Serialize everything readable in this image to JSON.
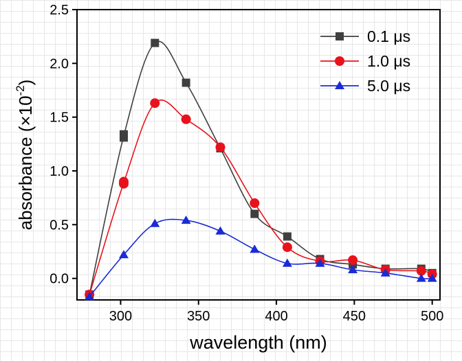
{
  "chart_data": {
    "type": "line",
    "xlabel": "wavelength (nm)",
    "ylabel_main": "absorbance (×10",
    "ylabel_sup": "-2",
    "ylabel_close": ")",
    "xlim": [
      272,
      505
    ],
    "ylim": [
      -0.2,
      2.5
    ],
    "xticks": [
      300,
      350,
      400,
      450,
      500
    ],
    "xtick_labels": [
      "300",
      "350",
      "400",
      "450",
      "500"
    ],
    "yticks": [
      0.0,
      0.5,
      1.0,
      1.5,
      2.0,
      2.5
    ],
    "ytick_labels": [
      "0.0",
      "0.5",
      "1.0",
      "1.5",
      "2.0",
      "2.5"
    ],
    "grid": false,
    "legend_position": "top-right",
    "series": [
      {
        "name": "0.1 μs",
        "color": "#3f3f3f",
        "marker": "square",
        "x": [
          280,
          302,
          302,
          322,
          342,
          364,
          386,
          407,
          428,
          449,
          470,
          493,
          500
        ],
        "y": [
          -0.15,
          1.31,
          1.34,
          2.19,
          1.82,
          1.21,
          0.6,
          0.39,
          0.18,
          0.13,
          0.09,
          0.09,
          0.05
        ]
      },
      {
        "name": "1.0 μs",
        "color": "#e8121b",
        "marker": "circle",
        "x": [
          280,
          302,
          302,
          322,
          342,
          364,
          386,
          407,
          428,
          449,
          470,
          493,
          500
        ],
        "y": [
          -0.15,
          0.88,
          0.9,
          1.63,
          1.48,
          1.22,
          0.7,
          0.29,
          0.16,
          0.17,
          0.08,
          0.07,
          0.04
        ]
      },
      {
        "name": "5.0 μs",
        "color": "#1a2bd6",
        "marker": "triangle",
        "x": [
          280,
          302,
          322,
          342,
          364,
          386,
          407,
          428,
          449,
          470,
          493,
          500
        ],
        "y": [
          -0.17,
          0.22,
          0.51,
          0.54,
          0.44,
          0.27,
          0.14,
          0.14,
          0.08,
          0.05,
          0.0,
          0.0
        ]
      }
    ]
  }
}
